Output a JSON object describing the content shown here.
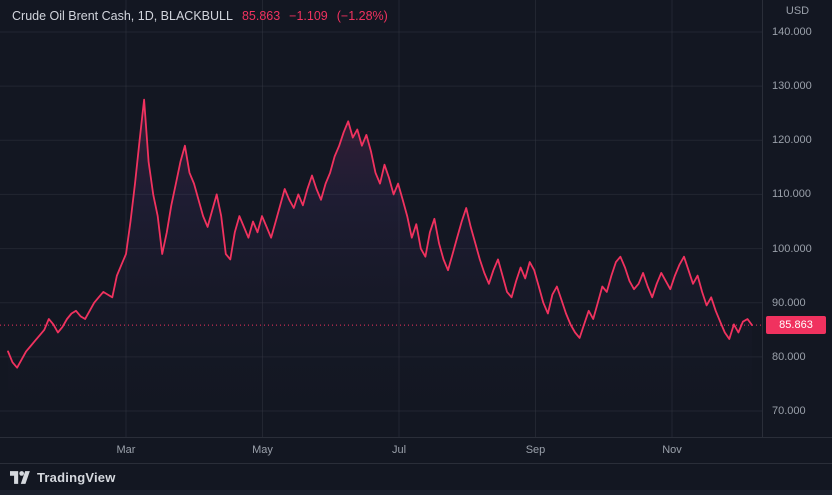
{
  "colors": {
    "background": "#131722",
    "accent": "#f0325f",
    "grid": "rgba(54,58,69,0.45)",
    "axis_text": "#9aa0aa",
    "title_text": "#d1d4dc",
    "border": "#2a2e39"
  },
  "legend": {
    "symbol_title": "Crude Oil Brent Cash, 1D, BLACKBULL",
    "last_price": "85.863",
    "change": "−1.109",
    "change_percent": "(−1.28%)"
  },
  "price_scale": {
    "currency_label": "USD",
    "last_price_label": "85.863"
  },
  "footer": {
    "brand_name": "TradingView"
  },
  "chart_data": {
    "type": "area",
    "title": "Crude Oil Brent Cash, 1D, BLACKBULL",
    "series_name": "Crude Oil Brent Cash",
    "timeframe": "1D",
    "legend_position": "top-left",
    "grid": true,
    "x_tick_labels": [
      "Mar",
      "May",
      "Jul",
      "Sep",
      "Nov"
    ],
    "y_ticks": [
      {
        "label": "140.000",
        "value": 140
      },
      {
        "label": "130.000",
        "value": 130
      },
      {
        "label": "120.000",
        "value": 120
      },
      {
        "label": "110.000",
        "value": 110
      },
      {
        "label": "100.000",
        "value": 100
      },
      {
        "label": "90.000",
        "value": 90
      },
      {
        "label": "80.000",
        "value": 80
      },
      {
        "label": "70.000",
        "value": 70
      }
    ],
    "ylim": [
      65,
      146
    ],
    "last_price": 85.863,
    "values": [
      81,
      79,
      78,
      79.5,
      81,
      82,
      83,
      84,
      85,
      87,
      86,
      84.5,
      85.5,
      87,
      88,
      88.5,
      87.5,
      87,
      88.5,
      90,
      91,
      92,
      91.5,
      91,
      95,
      97,
      99,
      105,
      112,
      120,
      127.5,
      116,
      110,
      106,
      99,
      103,
      108,
      112,
      116,
      119,
      114,
      112,
      109,
      106,
      104,
      107,
      110,
      106,
      99,
      98,
      103,
      106,
      104,
      102,
      105,
      103,
      106,
      104,
      102,
      105,
      108,
      111,
      109,
      107.5,
      110,
      108,
      111,
      113.5,
      111,
      109,
      112,
      114,
      117,
      119,
      121.5,
      123.5,
      120.5,
      122,
      119,
      121,
      118,
      114,
      112,
      115.5,
      113,
      110,
      112,
      109,
      106,
      102,
      104.5,
      100,
      98.5,
      103,
      105.5,
      101,
      98,
      96,
      99,
      102,
      105,
      107.5,
      104,
      101,
      98,
      95.5,
      93.5,
      96,
      98,
      95,
      92,
      91,
      94,
      96.5,
      94.5,
      97.5,
      96,
      93,
      90,
      88,
      91.5,
      93,
      90.5,
      88,
      86,
      84.5,
      83.5,
      86,
      88.5,
      87,
      90,
      93,
      92,
      95,
      97.5,
      98.5,
      96.5,
      94,
      92.5,
      93.5,
      95.5,
      93,
      91,
      93.5,
      95.5,
      94,
      92.5,
      95,
      97,
      98.5,
      96,
      93.5,
      95,
      92,
      89.5,
      91,
      88.5,
      86.5,
      84.5,
      83.3,
      86,
      84.5,
      86.5,
      87,
      85.863
    ]
  }
}
